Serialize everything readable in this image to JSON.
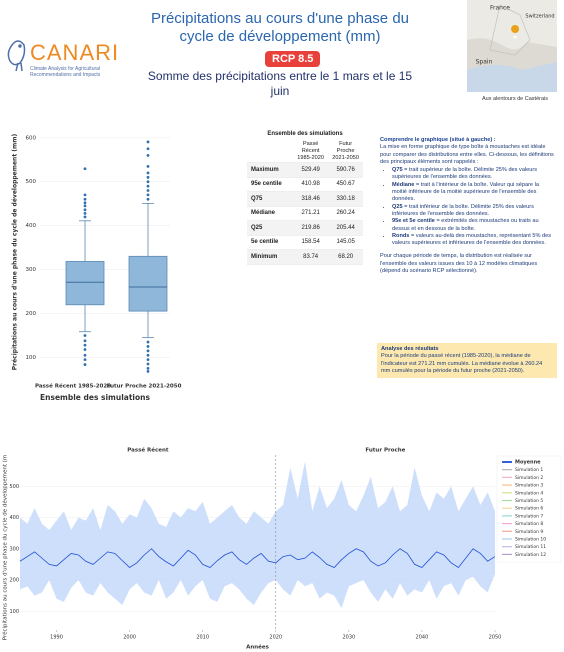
{
  "header": {
    "logo": "CANARI",
    "logo_subtitle": "Climate Analysis for Agricultural Recommendations and Impacts",
    "title": "Précipitations au cours d'une phase du cycle de développement (mm)",
    "scenario": "RCP 8.5",
    "subtitle": "Somme des précipitations entre le 1 mars et le 15 juin"
  },
  "map": {
    "labels": [
      "France",
      "Switzerland",
      "Spain"
    ],
    "caption": "Aux alentours de Castérais"
  },
  "table": {
    "title": "Ensemble des simulations",
    "columns": [
      "Passé Récent 1985-2020",
      "Futur Proche 2021-2050"
    ],
    "rows": [
      [
        "Maximum",
        "529.49",
        "590.76"
      ],
      [
        "95e centile",
        "410.98",
        "450.67"
      ],
      [
        "Q75",
        "318.46",
        "330.18"
      ],
      [
        "Médiane",
        "271.21",
        "260.24"
      ],
      [
        "Q25",
        "219.86",
        "205.44"
      ],
      [
        "5e centile",
        "158.54",
        "145.05"
      ],
      [
        "Minimum",
        "83.74",
        "68.20"
      ]
    ]
  },
  "explanation": {
    "title": "Comprendre le graphique (situé à gauche) :",
    "intro": "La mise en forme graphique de type boîte à moustaches est idéale pour comparer des distributions entre elles. Ci-dessous, les définitions des principaux éléments sont rappelés :",
    "items": [
      {
        "term": "Q75",
        "text": " = trait supérieur de la boîte. Délimite 25% des valeurs supérieures de l'ensemble des données."
      },
      {
        "term": "Médiane",
        "text": " = trait à l'intérieur de la boîte. Valeur qui sépare la moitié inférieure de la moitié supérieure de l'ensemble des données."
      },
      {
        "term": "Q25",
        "text": " = trait inférieur de la boîte. Délimite 25% des valeurs inférieures de l'ensemble des données."
      },
      {
        "term": "95e et 5e centile",
        "text": " = extrémités des moustaches ou traits au dessus et en dessous de la boîte."
      },
      {
        "term": "Ronds",
        "text": " = valeurs au-delà des moustaches, représentant 5% des valeurs supérieures et inférieures de l'ensemble des données."
      }
    ],
    "note": "Pour chaque période de temps, la distribution est réalisée sur l'ensemble des valeurs issues des 10 à 12 modèles climatiques (dépend du scénario RCP sélectionné)."
  },
  "analysis": {
    "title": "Analyse des résultats",
    "text": "Pour la période du passé récent (1985-2020), la médiane de l'indicateur est 271.21 mm cumulés. La médiane évolue à 260.24 mm cumulés pour la période du futur proche (2021-2050)."
  },
  "chart_data": [
    {
      "type": "box",
      "ylabel": "Précipitations au cours d'une phase du cycle de développement (mm)",
      "xlabel": "Ensemble des simulations",
      "categories": [
        "Passé Récent 1985-2020",
        "Futur Proche 2021-2050"
      ],
      "color": "#8fb7d9",
      "ylim": [
        60,
        620
      ],
      "yticks": [
        100,
        200,
        300,
        400,
        500,
        600
      ],
      "grid": true,
      "boxes": [
        {
          "whisker_low": 158.54,
          "q1": 219.86,
          "median": 271.21,
          "q3": 318.46,
          "whisker_high": 410.98,
          "outliers": [
            83.74,
            95,
            105,
            118,
            128,
            138,
            150,
            420,
            428,
            436,
            445,
            452,
            460,
            470,
            529.49
          ]
        },
        {
          "whisker_low": 145.05,
          "q1": 205.44,
          "median": 260.24,
          "q3": 330.18,
          "whisker_high": 450.67,
          "outliers": [
            68.2,
            75,
            85,
            95,
            105,
            115,
            125,
            135,
            460,
            470,
            480,
            490,
            500,
            510,
            520,
            535,
            560,
            575,
            590.76
          ]
        }
      ]
    },
    {
      "type": "line",
      "panel_titles": [
        "Passé Récent",
        "Futur Proche"
      ],
      "divider_x": 2020,
      "ylabel": "Précipitations au cours d'une phase du cycle de développement (m",
      "xlabel": "Années",
      "xlim": [
        1985,
        2050
      ],
      "xticks": [
        1990,
        2000,
        2010,
        2020,
        2030,
        2040,
        2050
      ],
      "ylim": [
        40,
        600
      ],
      "yticks": [
        100,
        200,
        300,
        400,
        500
      ],
      "grid": true,
      "x": [
        1985,
        1986,
        1987,
        1988,
        1989,
        1990,
        1991,
        1992,
        1993,
        1994,
        1995,
        1996,
        1997,
        1998,
        1999,
        2000,
        2001,
        2002,
        2003,
        2004,
        2005,
        2006,
        2007,
        2008,
        2009,
        2010,
        2011,
        2012,
        2013,
        2014,
        2015,
        2016,
        2017,
        2018,
        2019,
        2020,
        2021,
        2022,
        2023,
        2024,
        2025,
        2026,
        2027,
        2028,
        2029,
        2030,
        2031,
        2032,
        2033,
        2034,
        2035,
        2036,
        2037,
        2038,
        2039,
        2040,
        2041,
        2042,
        2043,
        2044,
        2045,
        2046,
        2047,
        2048,
        2049,
        2050
      ],
      "series": [
        {
          "name": "Moyenne",
          "color": "#1f4fd6",
          "values": [
            260,
            275,
            290,
            270,
            250,
            245,
            265,
            285,
            280,
            260,
            250,
            270,
            290,
            285,
            262,
            240,
            255,
            280,
            300,
            275,
            258,
            245,
            270,
            295,
            280,
            250,
            240,
            262,
            280,
            290,
            265,
            250,
            270,
            285,
            260,
            255,
            275,
            280,
            265,
            270,
            290,
            272,
            250,
            240,
            265,
            285,
            300,
            290,
            260,
            245,
            255,
            280,
            300,
            285,
            250,
            240,
            265,
            290,
            280,
            255,
            240,
            270,
            300,
            285,
            260,
            275
          ]
        }
      ],
      "band": {
        "color": "#c9dcfb",
        "lower": [
          170,
          180,
          150,
          160,
          200,
          140,
          130,
          175,
          200,
          160,
          150,
          190,
          160,
          140,
          120,
          170,
          190,
          160,
          150,
          200,
          140,
          160,
          200,
          150,
          180,
          200,
          140,
          130,
          180,
          190,
          170,
          140,
          120,
          160,
          190,
          200,
          170,
          150,
          200,
          180,
          190,
          140,
          160,
          150,
          110,
          180,
          190,
          200,
          160,
          130,
          170,
          140,
          190,
          150,
          170,
          160,
          200,
          140,
          180,
          190,
          150,
          200,
          210,
          180,
          160,
          220
        ],
        "upper": [
          400,
          380,
          430,
          380,
          360,
          390,
          420,
          360,
          400,
          390,
          430,
          360,
          440,
          420,
          380,
          410,
          400,
          460,
          430,
          380,
          370,
          420,
          400,
          430,
          420,
          450,
          380,
          400,
          420,
          440,
          400,
          380,
          420,
          400,
          380,
          420,
          440,
          560,
          460,
          580,
          420,
          500,
          430,
          460,
          520,
          440,
          420,
          470,
          530,
          430,
          450,
          500,
          420,
          440,
          560,
          470,
          420,
          480,
          460,
          500,
          420,
          460,
          500,
          440,
          480,
          420
        ]
      },
      "legend_extra": [
        {
          "name": "Simulation 1",
          "color": "#b5b5b5"
        },
        {
          "name": "Simulation 2",
          "color": "#f2b6c6"
        },
        {
          "name": "Simulation 3",
          "color": "#f5c48a"
        },
        {
          "name": "Simulation 4",
          "color": "#d7e08a"
        },
        {
          "name": "Simulation 5",
          "color": "#a8dca0"
        },
        {
          "name": "Simulation 6",
          "color": "#f7d3a3"
        },
        {
          "name": "Simulation 7",
          "color": "#9fd8d0"
        },
        {
          "name": "Simulation 8",
          "color": "#f3a9d2"
        },
        {
          "name": "Simulation 9",
          "color": "#f4a99a"
        },
        {
          "name": "Simulation 10",
          "color": "#a9cdef"
        },
        {
          "name": "Simulation 11",
          "color": "#c9b6ea"
        },
        {
          "name": "Simulation 12",
          "color": "#b79fd6"
        }
      ]
    }
  ]
}
